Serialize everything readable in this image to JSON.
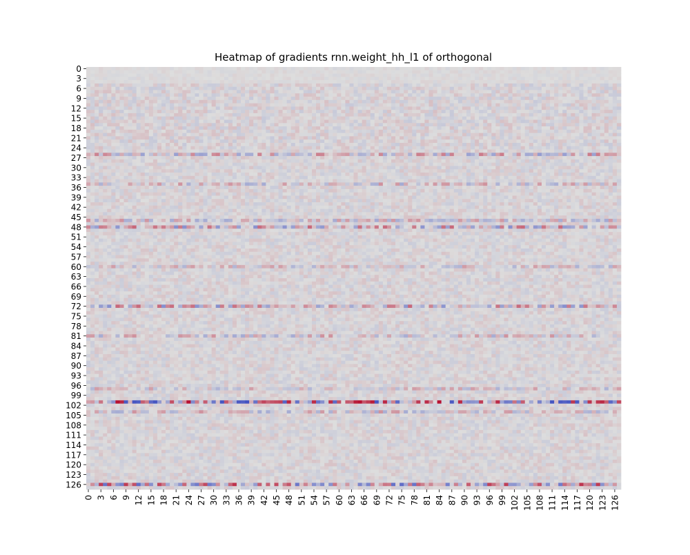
{
  "chart_data": {
    "type": "heatmap",
    "title": "Heatmap of gradients rnn.weight_hh_l1 of orthogonal",
    "xlabel": "",
    "ylabel": "",
    "n_rows": 128,
    "n_cols": 128,
    "x_tick_labels": [
      "0",
      "3",
      "6",
      "9",
      "12",
      "15",
      "18",
      "21",
      "24",
      "27",
      "30",
      "33",
      "36",
      "39",
      "42",
      "45",
      "48",
      "51",
      "54",
      "57",
      "60",
      "63",
      "66",
      "69",
      "72",
      "75",
      "78",
      "81",
      "84",
      "87",
      "90",
      "93",
      "96",
      "99",
      "102",
      "105",
      "108",
      "111",
      "114",
      "117",
      "120",
      "123",
      "126"
    ],
    "y_tick_labels": [
      "0",
      "3",
      "6",
      "9",
      "12",
      "15",
      "18",
      "21",
      "24",
      "27",
      "30",
      "33",
      "36",
      "39",
      "42",
      "45",
      "48",
      "51",
      "54",
      "57",
      "60",
      "63",
      "66",
      "69",
      "72",
      "75",
      "78",
      "81",
      "84",
      "87",
      "90",
      "93",
      "96",
      "99",
      "102",
      "105",
      "108",
      "111",
      "114",
      "117",
      "120",
      "123",
      "126"
    ],
    "colormap": "coolwarm",
    "colorbar": false,
    "colors": {
      "low": "#3b4cc0",
      "mid": "#dddddd",
      "high": "#b40426",
      "background": "#ffffff"
    },
    "row_intensity": [
      {
        "rows": [
          0,
          4
        ],
        "amplitude": 0.05
      },
      {
        "rows": [
          5,
          24
        ],
        "amplitude": 0.14
      },
      {
        "rows": [
          26,
          26
        ],
        "amplitude": 0.45
      },
      {
        "rows": [
          35,
          35
        ],
        "amplitude": 0.35
      },
      {
        "rows": [
          46,
          46
        ],
        "amplitude": 0.35
      },
      {
        "rows": [
          48,
          48
        ],
        "amplitude": 0.55
      },
      {
        "rows": [
          60,
          60
        ],
        "amplitude": 0.3
      },
      {
        "rows": [
          72,
          72
        ],
        "amplitude": 0.55
      },
      {
        "rows": [
          81,
          81
        ],
        "amplitude": 0.35
      },
      {
        "rows": [
          97,
          97
        ],
        "amplitude": 0.3
      },
      {
        "rows": [
          101,
          101
        ],
        "amplitude": 0.95
      },
      {
        "rows": [
          104,
          104
        ],
        "amplitude": 0.35
      },
      {
        "rows": [
          126,
          126
        ],
        "amplitude": 0.8
      }
    ],
    "default_amplitude": 0.12
  }
}
